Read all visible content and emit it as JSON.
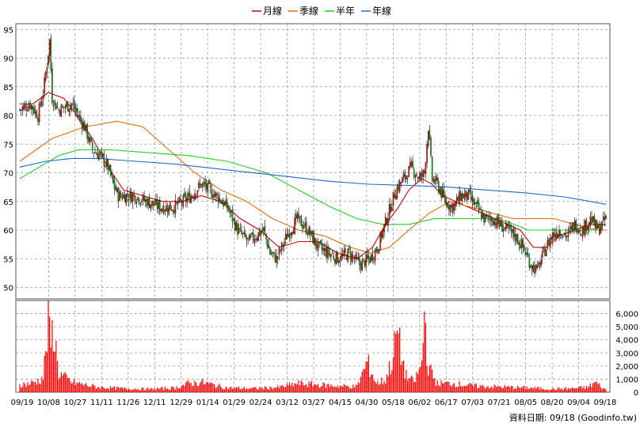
{
  "legend": [
    {
      "label": "月線",
      "color": "#cc0000"
    },
    {
      "label": "季線",
      "color": "#e06a10"
    },
    {
      "label": "半年",
      "color": "#22cc22"
    },
    {
      "label": "年線",
      "color": "#2266cc"
    }
  ],
  "source_note": "資料日期: 09/18 (Goodinfo.tw)",
  "colors": {
    "up": "#ff0000",
    "down": "#00aa00",
    "volume": "#ff0000",
    "grid": "#999999",
    "frame": "#555555"
  },
  "chart_data": {
    "type": "candlestick",
    "price_axis": {
      "ticks": [
        "95",
        "90",
        "85",
        "80",
        "75",
        "70",
        "65",
        "60",
        "55",
        "50"
      ],
      "ylim": [
        48,
        96
      ],
      "side": "left"
    },
    "volume_axis": {
      "ticks": [
        "0",
        "1,000",
        "2,000",
        "3,000",
        "4,000",
        "5,000",
        "6,000"
      ],
      "ylim": [
        0,
        7000
      ],
      "side": "right"
    },
    "x_ticks": [
      "09/19",
      "10/08",
      "10/27",
      "11/11",
      "11/26",
      "12/11",
      "12/29",
      "01/14",
      "01/29",
      "02/24",
      "03/12",
      "03/27",
      "04/15",
      "04/30",
      "05/18",
      "06/02",
      "06/17",
      "07/03",
      "07/21",
      "08/05",
      "08/20",
      "09/04",
      "09/18"
    ],
    "grid": true,
    "legend_position": "top-center",
    "price_anchors": [
      [
        0,
        81
      ],
      [
        8,
        82
      ],
      [
        14,
        80
      ],
      [
        18,
        84
      ],
      [
        21,
        89
      ],
      [
        23,
        93
      ],
      [
        25,
        83
      ],
      [
        30,
        81
      ],
      [
        40,
        82
      ],
      [
        50,
        78
      ],
      [
        56,
        74
      ],
      [
        62,
        73
      ],
      [
        68,
        71
      ],
      [
        72,
        68
      ],
      [
        76,
        66
      ],
      [
        82,
        66
      ],
      [
        88,
        66
      ],
      [
        98,
        65
      ],
      [
        108,
        64
      ],
      [
        118,
        64
      ],
      [
        126,
        65
      ],
      [
        132,
        66
      ],
      [
        140,
        68
      ],
      [
        146,
        67
      ],
      [
        152,
        66
      ],
      [
        160,
        64
      ],
      [
        168,
        60
      ],
      [
        176,
        58
      ],
      [
        182,
        59
      ],
      [
        188,
        60
      ],
      [
        193,
        56
      ],
      [
        198,
        55
      ],
      [
        206,
        59
      ],
      [
        214,
        62
      ],
      [
        222,
        60
      ],
      [
        230,
        57
      ],
      [
        238,
        56
      ],
      [
        246,
        55
      ],
      [
        254,
        56
      ],
      [
        262,
        54
      ],
      [
        270,
        55
      ],
      [
        276,
        57
      ],
      [
        283,
        62
      ],
      [
        290,
        67
      ],
      [
        296,
        69
      ],
      [
        302,
        71
      ],
      [
        308,
        69
      ],
      [
        312,
        70
      ],
      [
        315,
        78
      ],
      [
        318,
        69
      ],
      [
        322,
        68
      ],
      [
        328,
        65
      ],
      [
        334,
        64
      ],
      [
        340,
        66
      ],
      [
        346,
        66
      ],
      [
        352,
        64
      ],
      [
        358,
        62
      ],
      [
        364,
        62
      ],
      [
        370,
        61
      ],
      [
        376,
        60
      ],
      [
        382,
        59
      ],
      [
        388,
        57
      ],
      [
        394,
        54
      ],
      [
        399,
        53
      ],
      [
        404,
        56
      ],
      [
        410,
        59
      ],
      [
        416,
        60
      ],
      [
        422,
        59
      ],
      [
        428,
        61
      ],
      [
        434,
        60
      ],
      [
        440,
        62
      ],
      [
        446,
        60
      ],
      [
        452,
        62
      ]
    ],
    "moving_averages": [
      {
        "name": "月線",
        "points": [
          [
            0,
            82
          ],
          [
            10,
            82
          ],
          [
            22,
            84
          ],
          [
            34,
            83
          ],
          [
            44,
            80
          ],
          [
            56,
            76
          ],
          [
            68,
            71
          ],
          [
            80,
            67
          ],
          [
            95,
            66
          ],
          [
            110,
            65
          ],
          [
            125,
            65
          ],
          [
            140,
            66
          ],
          [
            155,
            65
          ],
          [
            170,
            62
          ],
          [
            185,
            60
          ],
          [
            200,
            57
          ],
          [
            215,
            58
          ],
          [
            230,
            58
          ],
          [
            245,
            56
          ],
          [
            260,
            55
          ],
          [
            272,
            57
          ],
          [
            282,
            61
          ],
          [
            292,
            64
          ],
          [
            300,
            67
          ],
          [
            310,
            69
          ],
          [
            318,
            68
          ],
          [
            326,
            66
          ],
          [
            336,
            65
          ],
          [
            346,
            64
          ],
          [
            356,
            63
          ],
          [
            366,
            62
          ],
          [
            376,
            61
          ],
          [
            386,
            60
          ],
          [
            396,
            57
          ],
          [
            406,
            57
          ],
          [
            416,
            59
          ],
          [
            428,
            60
          ],
          [
            440,
            61
          ],
          [
            452,
            61
          ]
        ]
      },
      {
        "name": "季線",
        "points": [
          [
            0,
            72
          ],
          [
            25,
            76
          ],
          [
            50,
            78
          ],
          [
            75,
            79
          ],
          [
            95,
            78
          ],
          [
            115,
            74
          ],
          [
            135,
            70
          ],
          [
            155,
            67
          ],
          [
            175,
            65
          ],
          [
            195,
            62
          ],
          [
            215,
            60
          ],
          [
            235,
            59
          ],
          [
            255,
            57
          ],
          [
            270,
            56
          ],
          [
            285,
            57
          ],
          [
            300,
            60
          ],
          [
            316,
            63
          ],
          [
            332,
            65
          ],
          [
            348,
            64
          ],
          [
            364,
            63
          ],
          [
            380,
            62
          ],
          [
            396,
            62
          ],
          [
            412,
            62
          ],
          [
            428,
            61
          ],
          [
            444,
            60
          ],
          [
            452,
            60
          ]
        ]
      },
      {
        "name": "半年",
        "points": [
          [
            0,
            69
          ],
          [
            15,
            71
          ],
          [
            30,
            73
          ],
          [
            45,
            74
          ],
          [
            70,
            74
          ],
          [
            100,
            73.5
          ],
          [
            130,
            73
          ],
          [
            160,
            72
          ],
          [
            190,
            70
          ],
          [
            215,
            67
          ],
          [
            240,
            64
          ],
          [
            260,
            62
          ],
          [
            280,
            61
          ],
          [
            300,
            61
          ],
          [
            320,
            62
          ],
          [
            340,
            62
          ],
          [
            360,
            62
          ],
          [
            376,
            61.5
          ],
          [
            392,
            60
          ],
          [
            408,
            60
          ],
          [
            424,
            60
          ],
          [
            440,
            60
          ],
          [
            452,
            61
          ]
        ]
      },
      {
        "name": "年線",
        "points": [
          [
            0,
            71
          ],
          [
            20,
            72
          ],
          [
            40,
            72.5
          ],
          [
            60,
            72.5
          ],
          [
            90,
            72
          ],
          [
            120,
            71.5
          ],
          [
            160,
            70.5
          ],
          [
            200,
            69.5
          ],
          [
            240,
            68.5
          ],
          [
            270,
            68
          ],
          [
            300,
            67.8
          ],
          [
            330,
            67.5
          ],
          [
            360,
            67
          ],
          [
            390,
            66.5
          ],
          [
            420,
            65.8
          ],
          [
            440,
            65
          ],
          [
            452,
            64.5
          ]
        ]
      }
    ],
    "volume_anchors": [
      [
        0,
        600
      ],
      [
        8,
        700
      ],
      [
        14,
        900
      ],
      [
        18,
        1200
      ],
      [
        22,
        5300
      ],
      [
        24,
        4000
      ],
      [
        26,
        5200
      ],
      [
        30,
        1500
      ],
      [
        40,
        800
      ],
      [
        50,
        600
      ],
      [
        60,
        400
      ],
      [
        80,
        300
      ],
      [
        100,
        250
      ],
      [
        120,
        350
      ],
      [
        130,
        700
      ],
      [
        140,
        800
      ],
      [
        160,
        350
      ],
      [
        180,
        300
      ],
      [
        200,
        400
      ],
      [
        215,
        700
      ],
      [
        230,
        600
      ],
      [
        245,
        500
      ],
      [
        260,
        450
      ],
      [
        268,
        2400
      ],
      [
        275,
        700
      ],
      [
        282,
        1000
      ],
      [
        288,
        2800
      ],
      [
        291,
        5100
      ],
      [
        294,
        3000
      ],
      [
        298,
        1300
      ],
      [
        304,
        800
      ],
      [
        310,
        2200
      ],
      [
        312,
        6500
      ],
      [
        315,
        2000
      ],
      [
        322,
        700
      ],
      [
        335,
        700
      ],
      [
        350,
        500
      ],
      [
        365,
        450
      ],
      [
        380,
        400
      ],
      [
        395,
        350
      ],
      [
        410,
        250
      ],
      [
        425,
        300
      ],
      [
        438,
        400
      ],
      [
        444,
        800
      ],
      [
        450,
        300
      ],
      [
        452,
        200
      ]
    ]
  }
}
